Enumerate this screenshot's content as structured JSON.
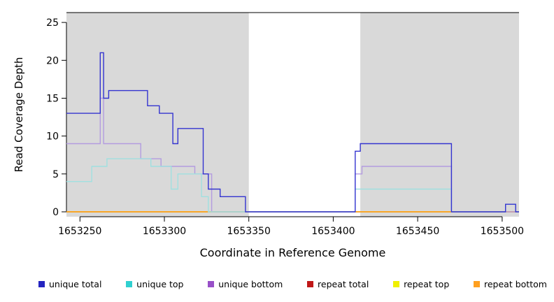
{
  "chart_data": {
    "type": "line",
    "step": true,
    "title": "",
    "xlabel": "Coordinate in Reference Genome",
    "ylabel": "Read Coverage Depth",
    "xlim": [
      1653242,
      1653510
    ],
    "ylim": [
      0,
      26.3
    ],
    "xticks": [
      1653250,
      1653300,
      1653350,
      1653400,
      1653450,
      1653500
    ],
    "yticks": [
      0,
      5,
      10,
      15,
      20,
      25
    ],
    "grid": false,
    "legend_position": "bottom",
    "region_color": "#d9d9d9",
    "shaded_regions": [
      {
        "start": 1653242,
        "end": 1653350
      },
      {
        "start": 1653416,
        "end": 1653510
      }
    ],
    "series": [
      {
        "name": "repeat total",
        "color": "#d02020",
        "steps": [
          [
            1653242,
            1653510,
            0
          ]
        ]
      },
      {
        "name": "repeat top",
        "color": "#f0f000",
        "steps": [
          [
            1653242,
            1653510,
            0
          ]
        ]
      },
      {
        "name": "repeat bottom",
        "color": "#ffa020",
        "steps": [
          [
            1653242,
            1653510,
            0
          ]
        ]
      },
      {
        "name": "unique bottom",
        "color": "#b39ce0",
        "steps": [
          [
            1653242,
            1653262,
            9
          ],
          [
            1653262,
            1653264,
            15
          ],
          [
            1653264,
            1653286,
            9
          ],
          [
            1653286,
            1653298,
            7
          ],
          [
            1653298,
            1653318,
            6
          ],
          [
            1653318,
            1653328,
            5
          ],
          [
            1653328,
            1653413,
            0
          ],
          [
            1653413,
            1653417,
            5
          ],
          [
            1653417,
            1653470,
            6
          ],
          [
            1653470,
            1653510,
            0
          ]
        ]
      },
      {
        "name": "unique top",
        "color": "#a0e0e0",
        "steps": [
          [
            1653242,
            1653257,
            4
          ],
          [
            1653257,
            1653266,
            6
          ],
          [
            1653266,
            1653292,
            7
          ],
          [
            1653292,
            1653304,
            6
          ],
          [
            1653304,
            1653308,
            3
          ],
          [
            1653308,
            1653322,
            5
          ],
          [
            1653322,
            1653326,
            2
          ],
          [
            1653326,
            1653413,
            0
          ],
          [
            1653413,
            1653470,
            3
          ],
          [
            1653470,
            1653502,
            0
          ],
          [
            1653502,
            1653508,
            1
          ],
          [
            1653508,
            1653510,
            0
          ]
        ]
      },
      {
        "name": "unique total",
        "color": "#3434d0",
        "steps": [
          [
            1653242,
            1653262,
            13
          ],
          [
            1653262,
            1653264,
            21
          ],
          [
            1653264,
            1653267,
            15
          ],
          [
            1653267,
            1653290,
            16
          ],
          [
            1653290,
            1653297,
            14
          ],
          [
            1653297,
            1653305,
            13
          ],
          [
            1653305,
            1653308,
            9
          ],
          [
            1653308,
            1653323,
            11
          ],
          [
            1653323,
            1653326,
            5
          ],
          [
            1653326,
            1653333,
            3
          ],
          [
            1653333,
            1653348,
            2
          ],
          [
            1653348,
            1653413,
            0
          ],
          [
            1653413,
            1653416,
            8
          ],
          [
            1653416,
            1653470,
            9
          ],
          [
            1653470,
            1653502,
            0
          ],
          [
            1653502,
            1653508,
            1
          ],
          [
            1653508,
            1653510,
            0
          ]
        ]
      }
    ]
  },
  "legend": {
    "items": [
      {
        "label": "unique total",
        "color": "#2424c0"
      },
      {
        "label": "unique top",
        "color": "#30d0d0"
      },
      {
        "label": "unique bottom",
        "color": "#9850c8"
      },
      {
        "label": "repeat total",
        "color": "#c01818"
      },
      {
        "label": "repeat top",
        "color": "#f0f000"
      },
      {
        "label": "repeat bottom",
        "color": "#ffa020"
      }
    ]
  }
}
